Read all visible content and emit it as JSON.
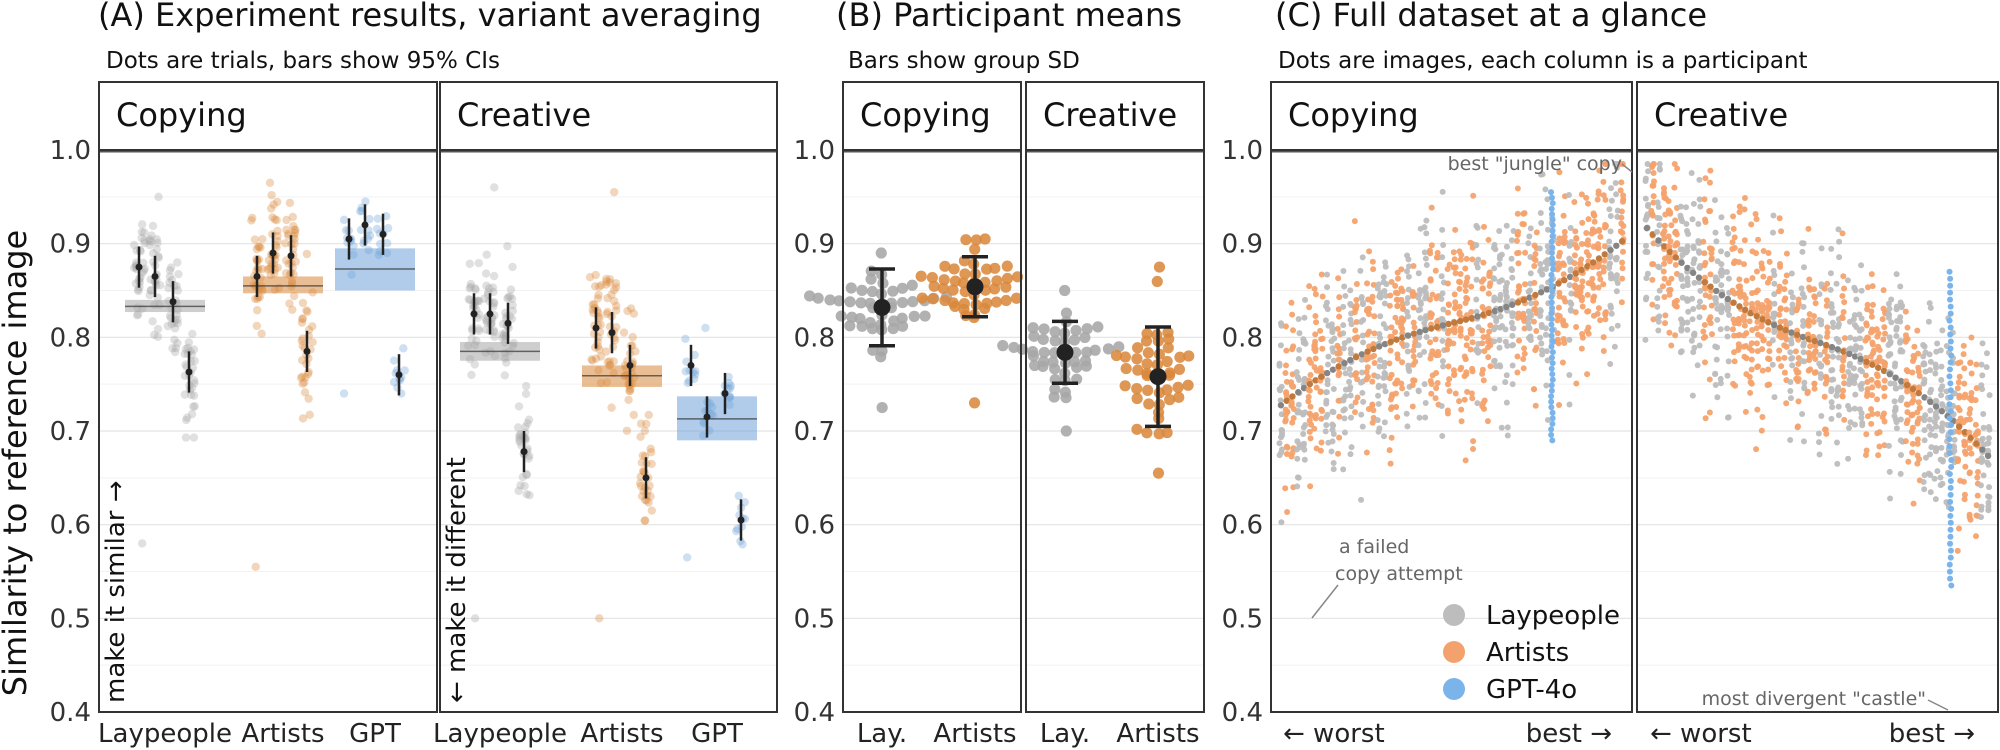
{
  "chart_data": [
    {
      "id": "A",
      "type": "scatter",
      "title": "(A) Experiment results, variant averaging",
      "subtitle": "Dots are trials, bars show 95% CIs",
      "ylabel": "Similarity to reference image",
      "ylim": [
        0.4,
        1.0
      ],
      "yticks": [
        "0.4",
        "0.5",
        "0.6",
        "0.7",
        "0.8",
        "0.9",
        "1.0"
      ],
      "facets": [
        {
          "name": "Copying",
          "arrow_text": "make it similar →",
          "groups": [
            {
              "label": "Laypeople",
              "color": "#a6a6a6",
              "mean": 0.833,
              "ci": [
                0.827,
                0.84
              ],
              "spread": [
                0.58,
                0.95
              ],
              "variants": [
                0.875,
                0.865,
                0.838,
                0.763
              ]
            },
            {
              "label": "Artists",
              "color": "#d9893c",
              "mean": 0.855,
              "ci": [
                0.847,
                0.865
              ],
              "spread": [
                0.555,
                0.965
              ],
              "variants": [
                0.865,
                0.89,
                0.887,
                0.785
              ]
            },
            {
              "label": "GPT",
              "color": "#6fa3d8",
              "mean": 0.873,
              "ci": [
                0.85,
                0.895
              ],
              "spread": [
                0.74,
                0.945
              ],
              "variants": [
                0.905,
                0.92,
                0.91,
                0.76
              ]
            }
          ]
        },
        {
          "name": "Creative",
          "arrow_text": "← make it different",
          "groups": [
            {
              "label": "Laypeople",
              "color": "#a6a6a6",
              "mean": 0.785,
              "ci": [
                0.775,
                0.795
              ],
              "spread": [
                0.5,
                0.96
              ],
              "variants": [
                0.825,
                0.825,
                0.815,
                0.678
              ]
            },
            {
              "label": "Artists",
              "color": "#d9893c",
              "mean": 0.759,
              "ci": [
                0.747,
                0.77
              ],
              "spread": [
                0.5,
                0.955
              ],
              "variants": [
                0.81,
                0.805,
                0.77,
                0.65
              ]
            },
            {
              "label": "GPT",
              "color": "#6fa3d8",
              "mean": 0.713,
              "ci": [
                0.69,
                0.737
              ],
              "spread": [
                0.565,
                0.81
              ],
              "variants": [
                0.77,
                0.715,
                0.74,
                0.605
              ]
            }
          ]
        }
      ]
    },
    {
      "id": "B",
      "type": "scatter",
      "title": "(B) Participant means",
      "subtitle": "Bars show group SD",
      "ylim": [
        0.4,
        1.0
      ],
      "yticks": [
        "0.4",
        "0.5",
        "0.6",
        "0.7",
        "0.8",
        "0.9",
        "1.0"
      ],
      "facets": [
        {
          "name": "Copying",
          "groups": [
            {
              "label": "Lay.",
              "color": "#a6a6a6",
              "mean": 0.832,
              "sd": 0.041,
              "spread": [
                0.725,
                0.89
              ]
            },
            {
              "label": "Artists",
              "color": "#d9893c",
              "mean": 0.854,
              "sd": 0.032,
              "spread": [
                0.73,
                0.905
              ]
            }
          ]
        },
        {
          "name": "Creative",
          "groups": [
            {
              "label": "Lay.",
              "color": "#a6a6a6",
              "mean": 0.784,
              "sd": 0.033,
              "spread": [
                0.7,
                0.85
              ]
            },
            {
              "label": "Artists",
              "color": "#d9893c",
              "mean": 0.758,
              "sd": 0.053,
              "spread": [
                0.655,
                0.875
              ]
            }
          ]
        }
      ]
    },
    {
      "id": "C",
      "type": "scatter",
      "title": "(C) Full dataset at a glance",
      "subtitle": "Dots are images, each column is a participant",
      "ylim": [
        0.4,
        1.0
      ],
      "yticks": [
        "0.4",
        "0.5",
        "0.6",
        "0.7",
        "0.8",
        "0.9",
        "1.0"
      ],
      "xlabel_left": "← worst",
      "xlabel_right": "best →",
      "facets": [
        {
          "name": "Copying",
          "trend_start": 0.725,
          "trend_end": 0.905,
          "gpt_position": 0.78,
          "gpt_range": [
            0.69,
            0.955
          ],
          "annotations": [
            "best \"jungle\" copy",
            "a failed",
            "copy attempt"
          ]
        },
        {
          "name": "Creative",
          "trend_start": 0.92,
          "trend_end": 0.67,
          "gpt_position": 0.87,
          "gpt_range": [
            0.535,
            0.87
          ],
          "annotations": [
            "most divergent \"castle\""
          ]
        }
      ],
      "legend": [
        {
          "label": "Laypeople",
          "color": "#bdbdbd"
        },
        {
          "label": "Artists",
          "color": "#f4a26d"
        },
        {
          "label": "GPT-4o",
          "color": "#7ab4ea"
        }
      ],
      "legend_position": "bottom-right"
    }
  ]
}
